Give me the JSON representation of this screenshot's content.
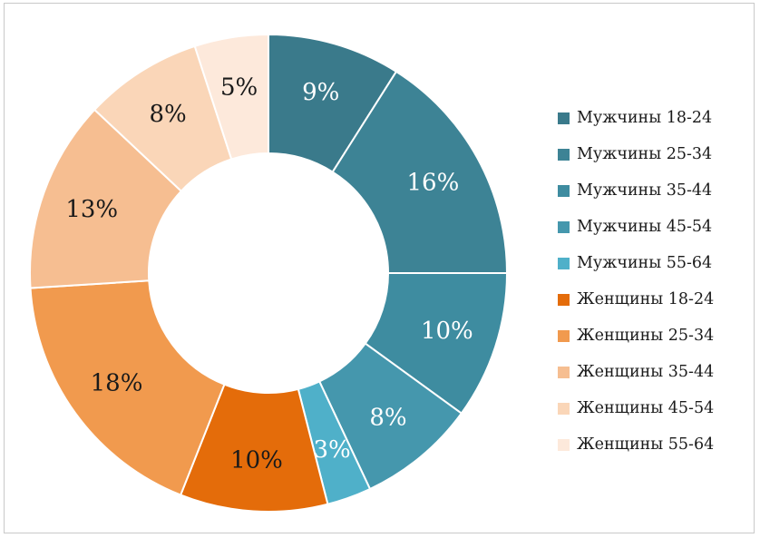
{
  "chart_data": {
    "type": "pie",
    "donut": true,
    "title": "",
    "categories": [
      "Мужчины 18-24",
      "Мужчины 25-34",
      "Мужчины 35-44",
      "Мужчины 45-54",
      "Мужчины 55-64",
      "Женщины 18-24",
      "Женщины 25-34",
      "Женщины 35-44",
      "Женщины 45-54",
      "Женщины 55-64"
    ],
    "values": [
      9,
      16,
      10,
      8,
      3,
      10,
      18,
      13,
      8,
      5
    ],
    "value_labels": [
      "9%",
      "16%",
      "10%",
      "8%",
      "3%",
      "10%",
      "18%",
      "13%",
      "8%",
      "5%"
    ],
    "colors": [
      "#3a7a8b",
      "#3d8395",
      "#3e8ca0",
      "#4597ad",
      "#4fb0c9",
      "#e46c0a",
      "#f19a4e",
      "#f6be91",
      "#fad6b8",
      "#fde9db"
    ],
    "label_colors": [
      "#ffffff",
      "#ffffff",
      "#ffffff",
      "#ffffff",
      "#ffffff",
      "#1a1a1a",
      "#1a1a1a",
      "#1a1a1a",
      "#1a1a1a",
      "#1a1a1a"
    ],
    "legend_position": "right",
    "start": "top",
    "direction": "clockwise"
  }
}
